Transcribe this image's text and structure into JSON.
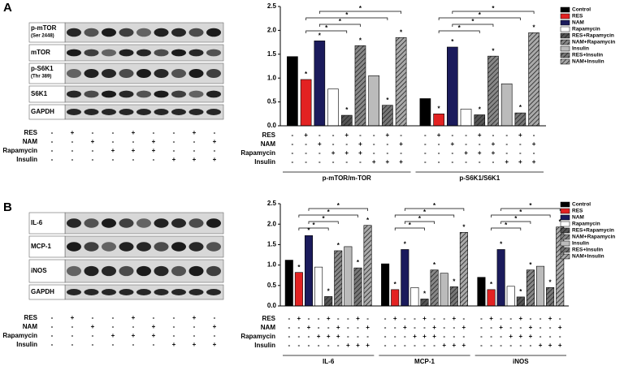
{
  "panel_labels": [
    "A",
    "B"
  ],
  "significance_marker": "*",
  "treatments": [
    {
      "name": "RES",
      "signs": [
        "-",
        "+",
        "-",
        "-",
        "+",
        "-",
        "-",
        "+",
        "-"
      ]
    },
    {
      "name": "NAM",
      "signs": [
        "-",
        "-",
        "+",
        "-",
        "-",
        "+",
        "-",
        "-",
        "+"
      ]
    },
    {
      "name": "Rapamycin",
      "signs": [
        "-",
        "-",
        "-",
        "+",
        "+",
        "+",
        "-",
        "-",
        "-"
      ]
    },
    {
      "name": "Insulin",
      "signs": [
        "-",
        "-",
        "-",
        "-",
        "-",
        "-",
        "+",
        "+",
        "+"
      ]
    }
  ],
  "blots": [
    {
      "rows": [
        {
          "label": "p-mTOR",
          "sublabel": "(Ser 2448)"
        },
        {
          "label": "mTOR"
        },
        {
          "label": "p-S6K1",
          "sublabel": "(Thr 389)"
        },
        {
          "label": "S6K1"
        },
        {
          "label": "GAPDH"
        }
      ]
    },
    {
      "rows": [
        {
          "label": "IL-6"
        },
        {
          "label": "MCP-1"
        },
        {
          "label": "iNOS"
        },
        {
          "label": "GAPDH"
        }
      ]
    }
  ],
  "chart_data": [
    {
      "type": "bar",
      "categories": [
        "p-mTOR/m-TOR",
        "p-S6K1/S6K1"
      ],
      "ylim": [
        0,
        2.5
      ],
      "yticks": [
        {
          "value": 0,
          "label": "0.0"
        },
        0.5,
        {
          "value": 1,
          "label": "1.0"
        },
        1.5,
        {
          "value": 2,
          "label": "2.0"
        },
        2.5
      ],
      "brackets": [
        [
          1,
          4
        ],
        [
          2,
          5
        ],
        [
          1,
          7
        ],
        [
          2,
          8
        ]
      ],
      "starred": [
        1,
        2,
        4,
        5,
        7,
        8
      ],
      "series": [
        {
          "name": "Control",
          "color": "#000000",
          "hatch": false,
          "values": [
            1.45,
            0.57
          ]
        },
        {
          "name": "RES",
          "color": "#e32222",
          "hatch": false,
          "values": [
            0.97,
            0.25
          ]
        },
        {
          "name": "NAM",
          "color": "#1b1b5c",
          "hatch": false,
          "values": [
            1.78,
            1.65
          ]
        },
        {
          "name": "Rapamycin",
          "color": "#ffffff",
          "hatch": false,
          "values": [
            0.77,
            0.35
          ]
        },
        {
          "name": "RES+Rapamycin",
          "color": "#555555",
          "hatch": true,
          "values": [
            0.22,
            0.23
          ]
        },
        {
          "name": "NAM+Rapamycin",
          "color": "#888888",
          "hatch": true,
          "values": [
            1.68,
            1.46
          ]
        },
        {
          "name": "Insulin",
          "color": "#bbbbbb",
          "hatch": false,
          "values": [
            1.05,
            0.88
          ]
        },
        {
          "name": "RES+Insulin",
          "color": "#777777",
          "hatch": true,
          "values": [
            0.43,
            0.27
          ]
        },
        {
          "name": "NAM+Insulin",
          "color": "#aaaaaa",
          "hatch": true,
          "values": [
            1.85,
            1.95
          ]
        }
      ]
    },
    {
      "type": "bar",
      "categories": [
        "IL-6",
        "MCP-1",
        "iNOS"
      ],
      "ylim": [
        0,
        2.5
      ],
      "yticks": [
        {
          "value": 0,
          "label": "0.0"
        },
        0.5,
        {
          "value": 1,
          "label": "1.0"
        },
        1.5,
        {
          "value": 2,
          "label": "2.0"
        },
        2.5
      ],
      "brackets": [
        [
          1,
          4
        ],
        [
          2,
          5
        ],
        [
          1,
          7
        ],
        [
          2,
          8
        ]
      ],
      "starred": [
        1,
        2,
        4,
        5,
        7,
        8
      ],
      "series": [
        {
          "name": "Control",
          "color": "#000000",
          "hatch": false,
          "values": [
            1.12,
            1.03,
            0.7
          ]
        },
        {
          "name": "RES",
          "color": "#e32222",
          "hatch": false,
          "values": [
            0.82,
            0.4,
            0.4
          ]
        },
        {
          "name": "NAM",
          "color": "#1b1b5c",
          "hatch": false,
          "values": [
            1.72,
            1.38,
            1.38
          ]
        },
        {
          "name": "Rapamycin",
          "color": "#ffffff",
          "hatch": false,
          "values": [
            0.95,
            0.45,
            0.48
          ]
        },
        {
          "name": "RES+Rapamycin",
          "color": "#555555",
          "hatch": true,
          "values": [
            0.23,
            0.17,
            0.22
          ]
        },
        {
          "name": "NAM+Rapamycin",
          "color": "#888888",
          "hatch": true,
          "values": [
            1.35,
            0.88,
            0.88
          ]
        },
        {
          "name": "Insulin",
          "color": "#bbbbbb",
          "hatch": false,
          "values": [
            1.45,
            0.8,
            0.97
          ]
        },
        {
          "name": "RES+Insulin",
          "color": "#777777",
          "hatch": true,
          "values": [
            0.93,
            0.47,
            0.45
          ]
        },
        {
          "name": "NAM+Insulin",
          "color": "#aaaaaa",
          "hatch": true,
          "values": [
            1.97,
            1.8,
            1.93
          ]
        }
      ]
    }
  ]
}
